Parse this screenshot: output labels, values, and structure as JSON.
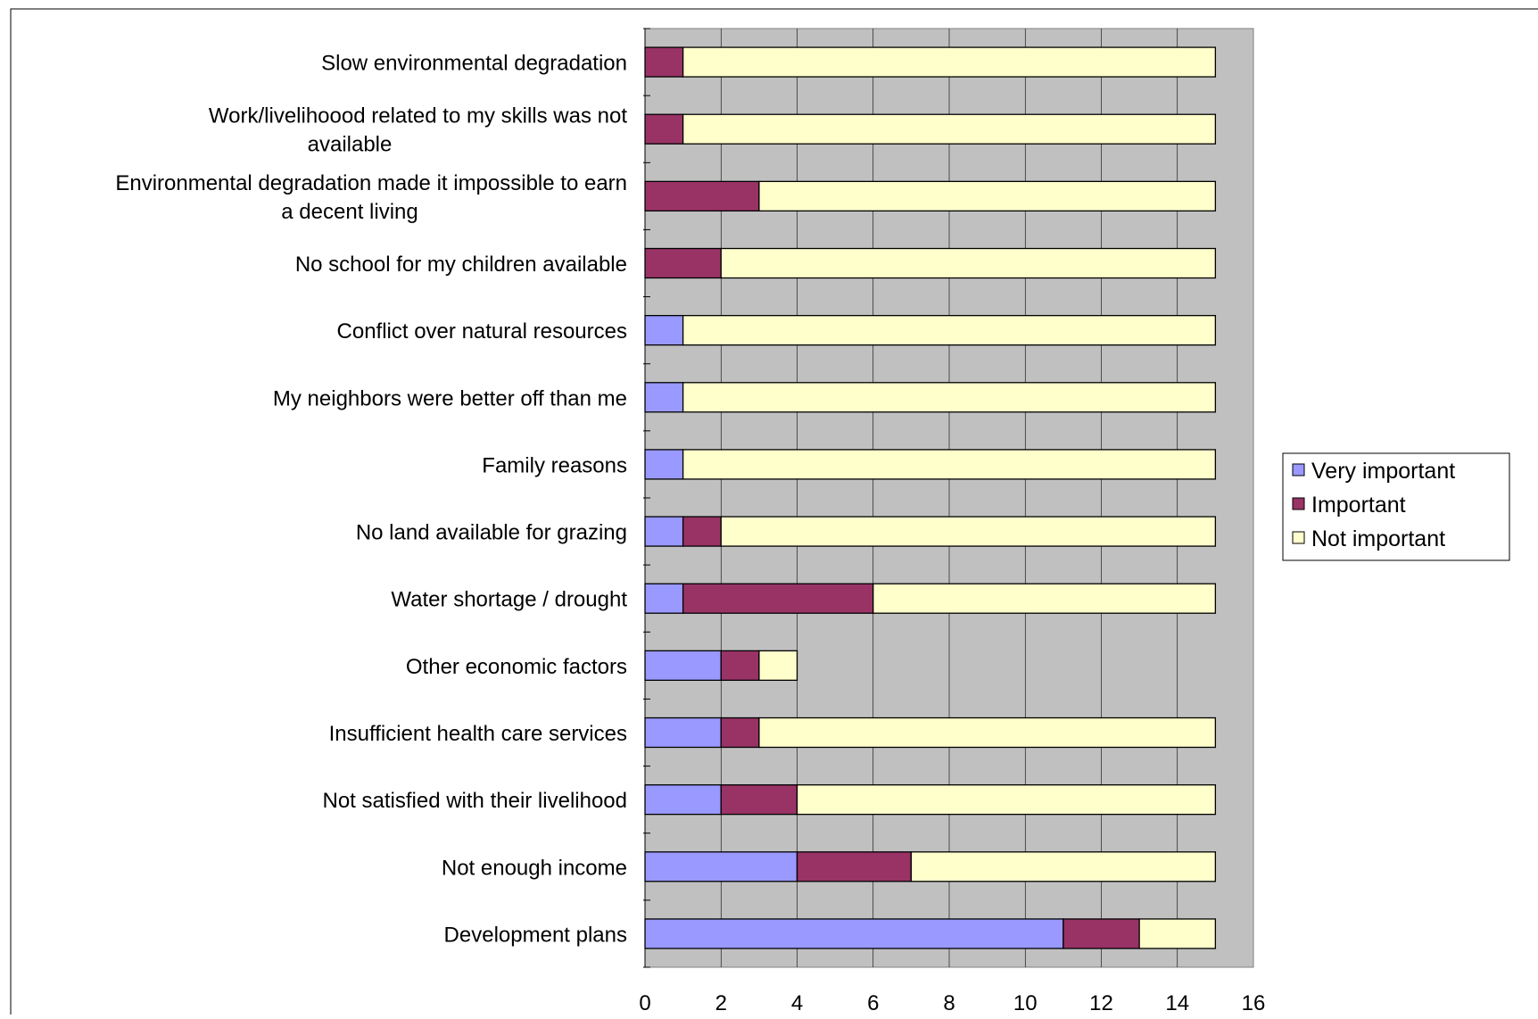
{
  "chart_data": {
    "type": "bar",
    "orientation": "horizontal",
    "stacked": true,
    "categories": [
      "Slow environmental degradation",
      "Work/livelihoood related to my skills was not available",
      "Environmental degradation made it impossible to earn a decent living",
      "No school for my children available",
      "Conflict over natural resources",
      "My neighbors were better off than me",
      "Family reasons",
      "No land available for grazing",
      "Water shortage / drought",
      "Other economic factors",
      "Insufficient health care services",
      "Not satisfied with their livelihood",
      "Not enough income",
      "Development plans"
    ],
    "category_label_lines": [
      [
        "Slow environmental degradation"
      ],
      [
        "Work/livelihoood related to my skills was not",
        "available"
      ],
      [
        "Environmental degradation made it impossible to earn",
        "a decent living"
      ],
      [
        "No school for my children available"
      ],
      [
        "Conflict over natural resources"
      ],
      [
        "My neighbors were better off than me"
      ],
      [
        "Family reasons"
      ],
      [
        "No land available for grazing"
      ],
      [
        "Water shortage / drought"
      ],
      [
        "Other economic factors"
      ],
      [
        "Insufficient health care services"
      ],
      [
        "Not satisfied with their livelihood"
      ],
      [
        "Not enough income"
      ],
      [
        "Development plans"
      ]
    ],
    "series": [
      {
        "name": "Very important",
        "color": "#9999ff",
        "values": [
          0,
          0,
          0,
          0,
          1,
          1,
          1,
          1,
          1,
          2,
          2,
          2,
          4,
          11
        ]
      },
      {
        "name": "Important",
        "color": "#993366",
        "values": [
          1,
          1,
          3,
          2,
          0,
          0,
          0,
          1,
          5,
          1,
          1,
          2,
          3,
          2
        ]
      },
      {
        "name": "Not important",
        "color": "#ffffcc",
        "values": [
          14,
          14,
          12,
          13,
          14,
          14,
          14,
          13,
          9,
          1,
          12,
          11,
          8,
          2
        ]
      }
    ],
    "xlim": [
      0,
      16
    ],
    "x_ticks": [
      0,
      2,
      4,
      6,
      8,
      10,
      12,
      14,
      16
    ],
    "title": "",
    "xlabel": "",
    "ylabel": "",
    "grid": true,
    "plot_background": "#c0c0c0",
    "legend_position": "right"
  }
}
